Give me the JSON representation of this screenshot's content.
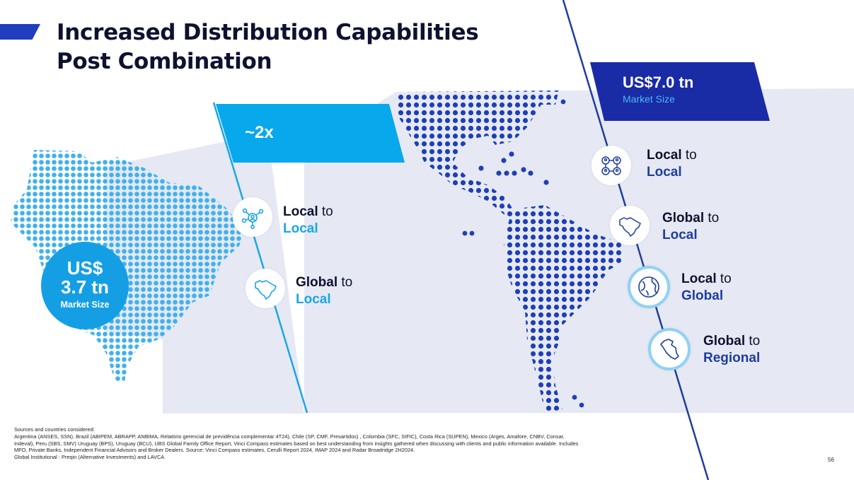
{
  "title": {
    "line1": "Increased Distribution Capabilities",
    "line2": "Post Combination"
  },
  "left_badge": {
    "line1": "US$",
    "line2": "3.7 tn",
    "caption": "Market Size"
  },
  "growth_tag": {
    "label": "~2x"
  },
  "right_badge": {
    "value": "US$7.0 tn",
    "caption": "Market Size"
  },
  "left_capabilities": [
    {
      "bold": "Local",
      "to": " to",
      "target": "Local",
      "icon": "network-icon"
    },
    {
      "bold": "Global",
      "to": " to",
      "target": "Local",
      "icon": "brazil-map-icon"
    }
  ],
  "right_capabilities": [
    {
      "bold": "Local",
      "to": " to",
      "target": "Local",
      "icon": "people-network-icon"
    },
    {
      "bold": "Global",
      "to": " to",
      "target": "Local",
      "icon": "brazil-map-icon"
    },
    {
      "bold": "Local",
      "to": " to",
      "target": "Global",
      "icon": "globe-icon"
    },
    {
      "bold": "Global",
      "to": " to",
      "target": "Regional",
      "icon": "peru-map-icon"
    }
  ],
  "footer": {
    "heading": "Sources and countries considered:",
    "line1": "Argentina (ANSES, SSN), Brazil (ABIPEM, ABRAPP, ANBIMA, Relatório gerencial de previdência complementar 4T24), Chile (SP, CMF, Presartidos) , Colombia (SFC, SIFIC), Costa Rica (SUPEN), Mexico (Arges, Amafore, CNBV, Consar,",
    "line2": "Indeval), Peru (SBS, SMV) Uruguay (BPS), Uruguay (BCU), UBS Global Family Office Report, Vinci Compass estimates based on best understanding from insights gathered when discussing with clients and public information available. Includes",
    "line3": "MFO, Private Banks, Independent Financial Advisors and Broker Dealers. Source: Vinci Compass estimates, Cerulli Report 2024, IMAP 2024 and Radar Broadridge 2H2024.",
    "line4": "Global Institutional : Preqin (Alternative Investments) and LAVCA"
  },
  "page_number": "56",
  "colors": {
    "dark_blue": "#1f3d9e",
    "light_blue": "#1aa6e8",
    "navy": "#0e1230",
    "panel": "#e6e9f3"
  }
}
